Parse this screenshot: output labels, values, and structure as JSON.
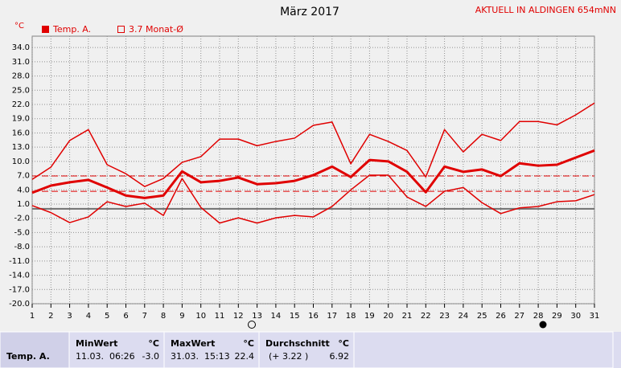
{
  "chart_data": {
    "type": "line",
    "title": "März 2017",
    "station": "AKTUELL IN ALDINGEN 654mNN",
    "y_unit": "°C",
    "legend": [
      {
        "label": "Temp. A.",
        "filled": true
      },
      {
        "label": "3.7 Monat-Ø",
        "filled": false
      }
    ],
    "reference_value": 3.7,
    "average": 6.92,
    "x": [
      1,
      2,
      3,
      4,
      5,
      6,
      7,
      8,
      9,
      10,
      11,
      12,
      13,
      14,
      15,
      16,
      17,
      18,
      19,
      20,
      21,
      22,
      23,
      24,
      25,
      26,
      27,
      28,
      29,
      30,
      31
    ],
    "xlim": [
      1,
      31
    ],
    "xticks": [
      1,
      2,
      3,
      4,
      5,
      6,
      7,
      8,
      9,
      10,
      11,
      12,
      13,
      14,
      15,
      16,
      17,
      18,
      19,
      20,
      21,
      22,
      23,
      24,
      25,
      26,
      27,
      28,
      29,
      30,
      31
    ],
    "ylim": [
      -20,
      36.4
    ],
    "yticks": [
      {
        "value": 34,
        "label": "34.0"
      },
      {
        "value": 31,
        "label": "31.0"
      },
      {
        "value": 28,
        "label": "28.0"
      },
      {
        "value": 25,
        "label": "25.0"
      },
      {
        "value": 22,
        "label": "22.0"
      },
      {
        "value": 19,
        "label": "19.0"
      },
      {
        "value": 16,
        "label": "16.0"
      },
      {
        "value": 13,
        "label": "13.0"
      },
      {
        "value": 10,
        "label": "10.0"
      },
      {
        "value": 7,
        "label": "7.0"
      },
      {
        "value": 4,
        "label": "4.0"
      },
      {
        "value": 1,
        "label": "1.0"
      },
      {
        "value": -2,
        "label": "-2.0"
      },
      {
        "value": -5,
        "label": "-5.0"
      },
      {
        "value": -8,
        "label": "-8.0"
      },
      {
        "value": -11,
        "label": "-11.0"
      },
      {
        "value": -14,
        "label": "-14.0"
      },
      {
        "value": -17,
        "label": "-17.0"
      },
      {
        "value": -20,
        "label": "-20.0"
      }
    ],
    "grid": true,
    "series": [
      {
        "color": "#e00000",
        "width": 1.5,
        "values": [
          6.2,
          8.8,
          14.4,
          16.7,
          9.3,
          7.4,
          4.7,
          6.4,
          9.8,
          11.0,
          14.7,
          14.7,
          13.3,
          14.2,
          14.9,
          17.6,
          18.3,
          9.5,
          15.7,
          14.2,
          12.3,
          6.7,
          16.7,
          12.0,
          15.7,
          14.4,
          18.4,
          18.4,
          17.7,
          19.8,
          22.3
        ]
      },
      {
        "name": "Temp. A.",
        "color": "#e00000",
        "width": 3,
        "values": [
          3.4,
          4.9,
          5.6,
          6.1,
          4.5,
          2.8,
          2.3,
          2.8,
          7.9,
          5.6,
          5.9,
          6.6,
          5.2,
          5.4,
          5.9,
          7.1,
          8.9,
          6.7,
          10.3,
          10.0,
          7.8,
          3.5,
          8.9,
          7.8,
          8.3,
          6.9,
          9.6,
          9.1,
          9.3,
          10.8,
          12.3
        ]
      },
      {
        "color": "#e00000",
        "width": 1.5,
        "values": [
          0.7,
          -0.8,
          -2.9,
          -1.7,
          1.5,
          0.5,
          1.2,
          -1.4,
          6.4,
          0.3,
          -3.0,
          -1.9,
          -3.0,
          -1.9,
          -1.4,
          -1.7,
          0.5,
          4.0,
          7.1,
          7.1,
          2.5,
          0.5,
          3.7,
          4.5,
          1.3,
          -1.0,
          0.2,
          0.5,
          1.5,
          1.7,
          3.0
        ]
      }
    ]
  },
  "table": {
    "headers": {
      "min": "MinWert",
      "max": "MaxWert",
      "avg": "Durchschnitt",
      "unit": "°C"
    },
    "row": {
      "label": "Temp. A.",
      "min_time": "11.03.  06:26",
      "min": "-3.0",
      "max_time": "31.03.  15:13",
      "max": "22.4",
      "avg_delta": "(+ 3.22 )",
      "avg": "6.92"
    }
  }
}
